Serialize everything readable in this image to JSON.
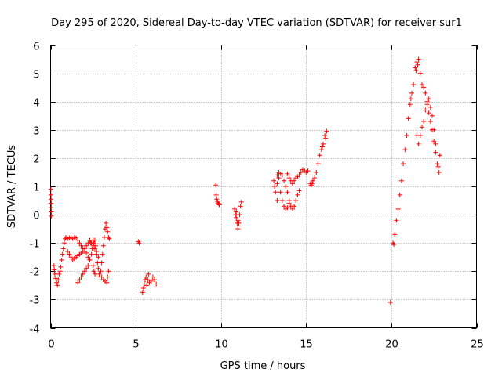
{
  "chart_data": {
    "type": "scatter",
    "title": "Day 295 of 2020, Sidereal Day-to-day VTEC variation (SDTVAR) for receiver sur1",
    "xlabel": "GPS time / hours",
    "ylabel": "SDTVAR / TECUs",
    "xlim": [
      0,
      25
    ],
    "ylim": [
      -4,
      6
    ],
    "xticks": [
      0,
      5,
      10,
      15,
      20,
      25
    ],
    "yticks": [
      -4,
      -3,
      -2,
      -1,
      0,
      1,
      2,
      3,
      4,
      5,
      6
    ],
    "grid": true,
    "marker": "+",
    "marker_color": "#ff0000",
    "series": [
      {
        "name": "sur1",
        "points": [
          [
            0.02,
            0.9
          ],
          [
            0.02,
            0.7
          ],
          [
            0.03,
            0.55
          ],
          [
            0.04,
            0.4
          ],
          [
            0.04,
            0.25
          ],
          [
            0.05,
            0.1
          ],
          [
            0.05,
            -0.05
          ],
          [
            0.2,
            -1.8
          ],
          [
            0.22,
            -1.95
          ],
          [
            0.25,
            -2.1
          ],
          [
            0.3,
            -2.25
          ],
          [
            0.35,
            -2.4
          ],
          [
            0.4,
            -2.5
          ],
          [
            0.45,
            -2.3
          ],
          [
            0.5,
            -2.1
          ],
          [
            0.55,
            -2.0
          ],
          [
            0.6,
            -1.85
          ],
          [
            0.65,
            -1.6
          ],
          [
            0.7,
            -1.4
          ],
          [
            0.75,
            -1.2
          ],
          [
            0.8,
            -1.0
          ],
          [
            0.85,
            -0.85
          ],
          [
            0.9,
            -0.8
          ],
          [
            1.0,
            -0.85
          ],
          [
            1.1,
            -0.82
          ],
          [
            1.2,
            -0.8
          ],
          [
            1.3,
            -0.85
          ],
          [
            1.4,
            -0.8
          ],
          [
            1.5,
            -0.82
          ],
          [
            1.6,
            -0.9
          ],
          [
            1.7,
            -1.0
          ],
          [
            1.8,
            -1.1
          ],
          [
            1.9,
            -1.2
          ],
          [
            2.0,
            -1.3
          ],
          [
            2.1,
            -1.35
          ],
          [
            2.2,
            -1.5
          ],
          [
            2.3,
            -1.6
          ],
          [
            1.0,
            -1.3
          ],
          [
            1.1,
            -1.4
          ],
          [
            1.2,
            -1.5
          ],
          [
            1.3,
            -1.6
          ],
          [
            1.4,
            -1.55
          ],
          [
            1.5,
            -1.5
          ],
          [
            1.6,
            -1.45
          ],
          [
            1.7,
            -1.4
          ],
          [
            1.8,
            -1.35
          ],
          [
            1.9,
            -1.3
          ],
          [
            2.0,
            -1.2
          ],
          [
            2.1,
            -1.1
          ],
          [
            2.2,
            -1.0
          ],
          [
            2.3,
            -0.9
          ],
          [
            2.4,
            -1.0
          ],
          [
            2.5,
            -1.1
          ],
          [
            2.6,
            -1.2
          ],
          [
            2.7,
            -1.3
          ],
          [
            2.8,
            -1.5
          ],
          [
            1.6,
            -2.4
          ],
          [
            1.7,
            -2.3
          ],
          [
            1.8,
            -2.2
          ],
          [
            1.9,
            -2.1
          ],
          [
            2.0,
            -2.0
          ],
          [
            2.1,
            -1.9
          ],
          [
            2.2,
            -1.8
          ],
          [
            2.3,
            -1.6
          ],
          [
            2.4,
            -1.4
          ],
          [
            2.5,
            -1.2
          ],
          [
            2.55,
            -1.0
          ],
          [
            2.6,
            -0.9
          ],
          [
            2.65,
            -1.1
          ],
          [
            2.7,
            -1.4
          ],
          [
            2.75,
            -1.7
          ],
          [
            2.8,
            -1.9
          ],
          [
            2.85,
            -2.1
          ],
          [
            2.9,
            -2.2
          ],
          [
            2.95,
            -2.0
          ],
          [
            3.0,
            -1.7
          ],
          [
            3.05,
            -1.4
          ],
          [
            3.1,
            -1.1
          ],
          [
            3.15,
            -0.8
          ],
          [
            3.2,
            -0.5
          ],
          [
            3.25,
            -0.3
          ],
          [
            3.3,
            -0.45
          ],
          [
            3.35,
            -0.6
          ],
          [
            3.4,
            -0.8
          ],
          [
            3.45,
            -0.85
          ],
          [
            3.0,
            -2.2
          ],
          [
            3.1,
            -2.3
          ],
          [
            3.2,
            -2.35
          ],
          [
            3.3,
            -2.4
          ],
          [
            3.35,
            -2.2
          ],
          [
            3.4,
            -2.0
          ],
          [
            2.5,
            -1.8
          ],
          [
            2.55,
            -2.0
          ],
          [
            2.6,
            -2.1
          ],
          [
            2.5,
            -0.9
          ],
          [
            2.45,
            -1.2
          ],
          [
            2.35,
            -1.0
          ],
          [
            5.15,
            -0.95
          ],
          [
            5.2,
            -1.0
          ],
          [
            5.4,
            -2.75
          ],
          [
            5.45,
            -2.6
          ],
          [
            5.5,
            -2.45
          ],
          [
            5.55,
            -2.3
          ],
          [
            5.6,
            -2.2
          ],
          [
            5.7,
            -2.3
          ],
          [
            5.8,
            -2.4
          ],
          [
            5.9,
            -2.35
          ],
          [
            6.0,
            -2.2
          ],
          [
            6.1,
            -2.3
          ],
          [
            6.2,
            -2.45
          ],
          [
            5.65,
            -2.5
          ],
          [
            5.75,
            -2.1
          ],
          [
            9.7,
            1.05
          ],
          [
            9.72,
            0.7
          ],
          [
            9.75,
            0.55
          ],
          [
            9.8,
            0.45
          ],
          [
            9.85,
            0.4
          ],
          [
            9.9,
            0.35
          ],
          [
            10.8,
            0.2
          ],
          [
            10.85,
            0.0
          ],
          [
            10.9,
            -0.1
          ],
          [
            10.95,
            -0.3
          ],
          [
            11.0,
            -0.5
          ],
          [
            11.05,
            -0.3
          ],
          [
            11.1,
            0.0
          ],
          [
            11.15,
            0.3
          ],
          [
            11.2,
            0.45
          ],
          [
            11.0,
            -0.2
          ],
          [
            10.9,
            0.1
          ],
          [
            13.1,
            1.2
          ],
          [
            13.15,
            1.0
          ],
          [
            13.2,
            0.8
          ],
          [
            13.3,
            0.5
          ],
          [
            13.3,
            1.4
          ],
          [
            13.4,
            1.5
          ],
          [
            13.5,
            1.45
          ],
          [
            13.6,
            1.4
          ],
          [
            13.7,
            1.2
          ],
          [
            13.8,
            1.0
          ],
          [
            13.9,
            0.8
          ],
          [
            14.0,
            0.5
          ],
          [
            14.1,
            0.3
          ],
          [
            14.2,
            0.2
          ],
          [
            14.3,
            0.3
          ],
          [
            14.4,
            0.5
          ],
          [
            14.5,
            0.7
          ],
          [
            14.6,
            0.85
          ],
          [
            13.5,
            0.8
          ],
          [
            13.6,
            0.5
          ],
          [
            13.7,
            0.3
          ],
          [
            13.8,
            0.2
          ],
          [
            13.9,
            0.25
          ],
          [
            14.0,
            0.4
          ],
          [
            13.3,
            1.1
          ],
          [
            13.4,
            1.3
          ],
          [
            13.9,
            1.45
          ],
          [
            14.0,
            1.3
          ],
          [
            14.1,
            1.2
          ],
          [
            14.2,
            1.1
          ],
          [
            14.3,
            1.2
          ],
          [
            14.4,
            1.3
          ],
          [
            14.5,
            1.35
          ],
          [
            14.6,
            1.4
          ],
          [
            14.7,
            1.5
          ],
          [
            14.8,
            1.6
          ],
          [
            14.9,
            1.55
          ],
          [
            15.0,
            1.5
          ],
          [
            15.1,
            1.55
          ],
          [
            15.25,
            1.1
          ],
          [
            15.3,
            1.05
          ],
          [
            15.35,
            1.1
          ],
          [
            15.4,
            1.2
          ],
          [
            15.5,
            1.3
          ],
          [
            15.6,
            1.5
          ],
          [
            15.7,
            1.8
          ],
          [
            15.8,
            2.1
          ],
          [
            15.9,
            2.3
          ],
          [
            16.0,
            2.5
          ],
          [
            16.1,
            2.8
          ],
          [
            16.2,
            2.95
          ],
          [
            16.15,
            2.7
          ],
          [
            15.95,
            2.4
          ],
          [
            19.95,
            -3.1
          ],
          [
            20.1,
            -1.0
          ],
          [
            20.15,
            -1.05
          ],
          [
            20.2,
            -0.7
          ],
          [
            20.3,
            -0.2
          ],
          [
            20.4,
            0.2
          ],
          [
            20.5,
            0.7
          ],
          [
            20.6,
            1.2
          ],
          [
            20.7,
            1.8
          ],
          [
            20.8,
            2.3
          ],
          [
            20.9,
            2.8
          ],
          [
            21.0,
            3.4
          ],
          [
            21.1,
            3.9
          ],
          [
            21.15,
            4.1
          ],
          [
            21.2,
            4.3
          ],
          [
            21.3,
            4.6
          ],
          [
            21.4,
            5.2
          ],
          [
            21.5,
            5.4
          ],
          [
            21.6,
            5.5
          ],
          [
            21.7,
            5.0
          ],
          [
            21.8,
            4.6
          ],
          [
            21.9,
            4.5
          ],
          [
            22.0,
            4.3
          ],
          [
            22.1,
            4.0
          ],
          [
            22.2,
            3.6
          ],
          [
            22.3,
            3.3
          ],
          [
            22.4,
            3.0
          ],
          [
            22.5,
            2.6
          ],
          [
            22.6,
            2.2
          ],
          [
            22.7,
            1.8
          ],
          [
            22.8,
            1.5
          ],
          [
            22.85,
            2.1
          ],
          [
            22.75,
            1.7
          ],
          [
            21.5,
            2.8
          ],
          [
            21.6,
            2.5
          ],
          [
            21.7,
            2.8
          ],
          [
            21.8,
            3.1
          ],
          [
            21.9,
            3.3
          ],
          [
            22.0,
            3.7
          ],
          [
            22.1,
            3.9
          ],
          [
            22.2,
            4.1
          ],
          [
            22.3,
            3.8
          ],
          [
            22.4,
            3.5
          ],
          [
            22.5,
            3.0
          ],
          [
            22.6,
            2.5
          ],
          [
            21.45,
            5.1
          ],
          [
            21.55,
            5.3
          ]
        ]
      }
    ]
  }
}
